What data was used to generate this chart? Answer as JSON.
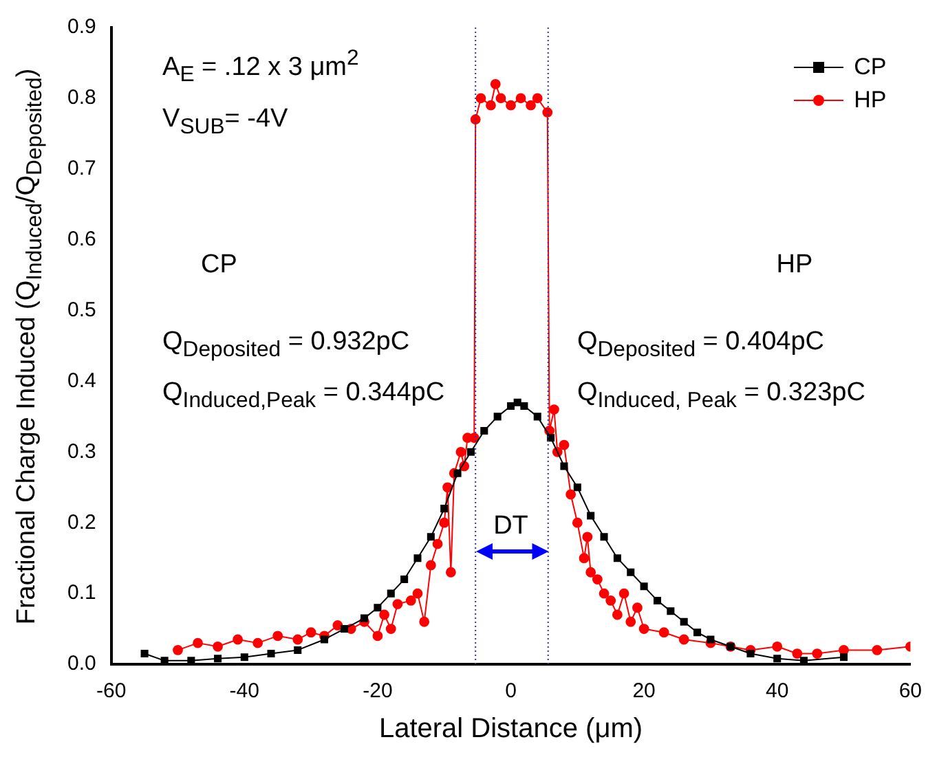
{
  "chart_data": {
    "type": "line",
    "xlabel": "Lateral Distance (μm)",
    "ylabel": "Fractional Charge Induced (Q$_{Induced}$/Q$_{Deposited}$)",
    "xlim": [
      -60,
      60
    ],
    "xticks": [
      -60,
      -40,
      -20,
      0,
      20,
      40,
      60
    ],
    "ylim": [
      0,
      0.9
    ],
    "yticks": [
      {
        "value": 0,
        "label": "0.0"
      },
      0.1,
      0.2,
      0.3,
      0.4,
      0.5,
      0.6,
      0.7,
      0.8,
      0.9
    ],
    "grid": false,
    "legend": "top right",
    "series": [
      {
        "name": "CP",
        "color": "#000000",
        "marker": "square",
        "x": [
          -55,
          -52,
          -48,
          -44,
          -40,
          -36,
          -32,
          -28,
          -25,
          -22,
          -20,
          -18,
          -16,
          -14,
          -12,
          -10,
          -8,
          -6,
          -4,
          -2,
          0,
          1,
          2,
          4,
          6,
          8,
          10,
          12,
          14,
          16,
          18,
          20,
          22,
          24,
          26,
          28,
          30,
          33,
          36,
          40,
          44,
          50
        ],
        "values": [
          0.015,
          0.005,
          0.005,
          0.008,
          0.01,
          0.015,
          0.02,
          0.035,
          0.05,
          0.065,
          0.08,
          0.1,
          0.12,
          0.15,
          0.18,
          0.22,
          0.27,
          0.3,
          0.33,
          0.35,
          0.365,
          0.37,
          0.365,
          0.35,
          0.32,
          0.28,
          0.25,
          0.21,
          0.18,
          0.15,
          0.13,
          0.11,
          0.09,
          0.075,
          0.06,
          0.045,
          0.035,
          0.025,
          0.015,
          0.008,
          0.005,
          0.01
        ]
      },
      {
        "name": "HP",
        "color": "#ff0000",
        "marker": "circle",
        "x": [
          -50,
          -47,
          -44,
          -41,
          -38,
          -35,
          -32,
          -30,
          -28,
          -26,
          -24,
          -22,
          -20,
          -19,
          -18,
          -17,
          -15,
          -14,
          -13,
          -12,
          -11,
          -10,
          -9.5,
          -9,
          -8.5,
          -7.5,
          -7,
          -6.5,
          -5.5,
          -5.3,
          -4.5,
          -3,
          -2.3,
          -1.5,
          0,
          1.5,
          3,
          4,
          5.5,
          5.8,
          6.5,
          7,
          8,
          9,
          10,
          11,
          11.5,
          12,
          13,
          14,
          15,
          16,
          17,
          18,
          19,
          20,
          23,
          26,
          30,
          33,
          36,
          40,
          43,
          46,
          50,
          55,
          60
        ],
        "values": [
          0.02,
          0.03,
          0.025,
          0.035,
          0.03,
          0.04,
          0.035,
          0.045,
          0.04,
          0.055,
          0.05,
          0.06,
          0.04,
          0.07,
          0.05,
          0.085,
          0.09,
          0.1,
          0.06,
          0.14,
          0.17,
          0.2,
          0.25,
          0.13,
          0.27,
          0.3,
          0.28,
          0.32,
          0.32,
          0.77,
          0.8,
          0.79,
          0.82,
          0.8,
          0.79,
          0.8,
          0.79,
          0.8,
          0.78,
          0.33,
          0.36,
          0.3,
          0.31,
          0.24,
          0.2,
          0.15,
          0.18,
          0.13,
          0.12,
          0.1,
          0.09,
          0.07,
          0.1,
          0.06,
          0.08,
          0.05,
          0.045,
          0.035,
          0.03,
          0.025,
          0.02,
          0.025,
          0.015,
          0.015,
          0.02,
          0.02,
          0.025
        ]
      }
    ],
    "ref_lines": [
      {
        "axis": "x",
        "value": -5.3,
        "color": "#333399",
        "line_style": "dotted"
      },
      {
        "axis": "x",
        "value": 5.6,
        "color": "#333399",
        "line_style": "dotted"
      }
    ],
    "annotations": [
      "A$_{E}$ = .12 x 3 μm$^{2}$",
      "V$_{SUB}$= -4V",
      "CP",
      "Q$_{Deposited}$ = 0.932pC",
      "Q$_{Induced,Peak}$ = 0.344pC",
      "HP",
      "Q$_{Deposited}$ = 0.404pC",
      "Q$_{Induced, Peak}$ = 0.323pC",
      "DT"
    ]
  }
}
